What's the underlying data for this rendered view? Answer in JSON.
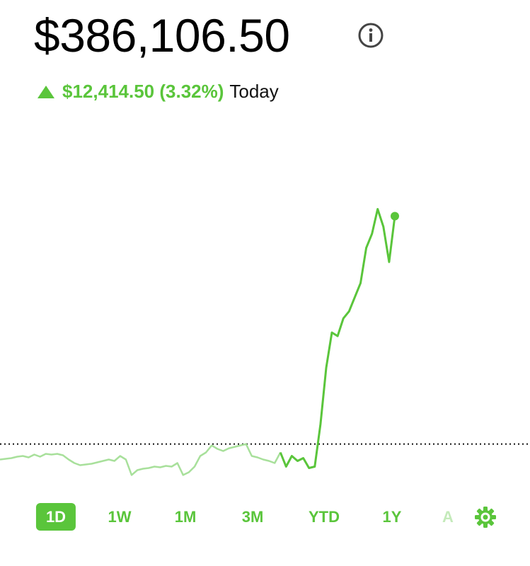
{
  "header": {
    "price": "$386,106.50",
    "change": "$12,414.50 (3.32%)",
    "period": "Today"
  },
  "chart_data": {
    "type": "line",
    "ylim": [
      370900,
      392100
    ],
    "previous_close": 373692,
    "series": [
      {
        "color": "#a8e09b",
        "values": [
          372846,
          372885,
          372923,
          373000,
          373039,
          372962,
          373115,
          373000,
          373154,
          373115,
          373154,
          373077,
          372846,
          372654,
          372539,
          372577,
          372616,
          372693,
          372769,
          372846,
          372769,
          373039,
          372846,
          372001,
          372270,
          372347,
          372385,
          372462,
          372423,
          372500,
          372462,
          372654,
          372001,
          372154,
          372462,
          373039,
          373231,
          373615,
          373423,
          373308,
          373461,
          373538,
          373615,
          373692,
          373039,
          372962,
          372846,
          372769,
          372654,
          373231,
          null,
          null,
          null,
          null,
          null,
          null,
          null,
          null,
          null,
          null,
          null,
          null,
          null,
          null,
          null,
          null,
          null,
          null,
          null,
          null
        ]
      },
      {
        "color": "#5ac53b",
        "values": [
          null,
          null,
          null,
          null,
          null,
          null,
          null,
          null,
          null,
          null,
          null,
          null,
          null,
          null,
          null,
          null,
          null,
          null,
          null,
          null,
          null,
          null,
          null,
          null,
          null,
          null,
          null,
          null,
          null,
          null,
          null,
          null,
          null,
          null,
          null,
          null,
          null,
          null,
          null,
          null,
          null,
          null,
          null,
          null,
          null,
          null,
          null,
          null,
          null,
          373231,
          372462,
          373039,
          372769,
          372923,
          372385,
          372462,
          374768,
          377844,
          379766,
          379573,
          380534,
          380919,
          381688,
          382456,
          384378,
          385147,
          386493,
          385532,
          383610,
          386106.5
        ]
      }
    ]
  },
  "tabs": [
    "1D",
    "1W",
    "1M",
    "3M",
    "YTD",
    "1Y",
    "A"
  ]
}
